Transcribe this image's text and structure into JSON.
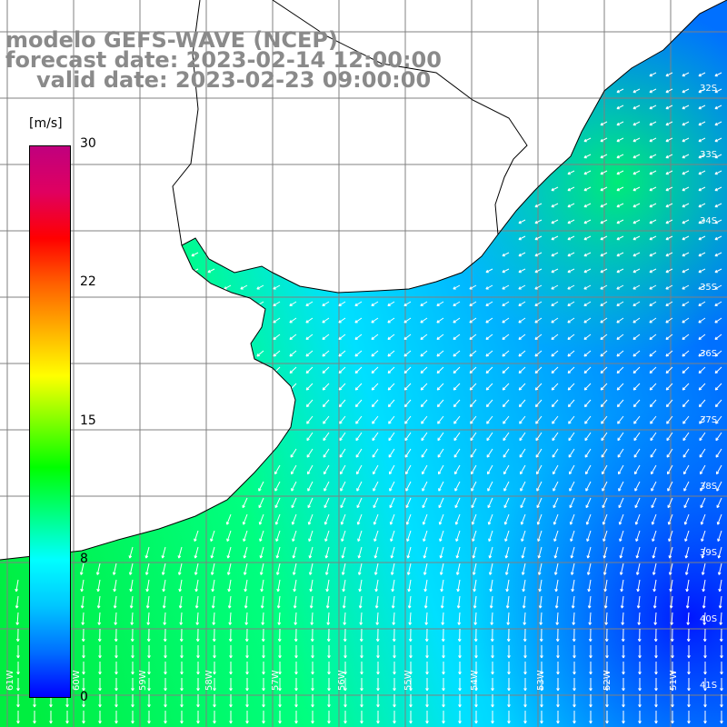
{
  "title": {
    "model": "modelo GEFS-WAVE (NCEP)",
    "forecast": "forecast date: 2023-02-14 12:00:00",
    "valid": "valid date: 2023-02-23 09:00:00"
  },
  "colorbar": {
    "unit": "[m/s]",
    "ticks": [
      "30",
      "22",
      "15",
      "8",
      "0"
    ],
    "range": [
      0,
      30
    ],
    "colors": [
      "#0000ff",
      "#0070ff",
      "#00c8ff",
      "#00ffff",
      "#00ff80",
      "#00ff00",
      "#80ff00",
      "#ffff00",
      "#ffb000",
      "#ff6000",
      "#ff0000",
      "#e00060",
      "#c0007e"
    ]
  },
  "map": {
    "variable": "wind speed and direction",
    "lat_labels": [
      "32S",
      "33S",
      "34S",
      "35S",
      "36S",
      "37S",
      "38S",
      "39S",
      "40S",
      "41S"
    ],
    "lon_labels": [
      "61W",
      "60W",
      "59W",
      "58W",
      "57W",
      "56W",
      "55W",
      "54W",
      "53W",
      "52W",
      "51W"
    ],
    "land_color": "#ffffff",
    "grid_color": "#808080",
    "coast_color": "#000000",
    "arrow_color": "#ffffff"
  }
}
